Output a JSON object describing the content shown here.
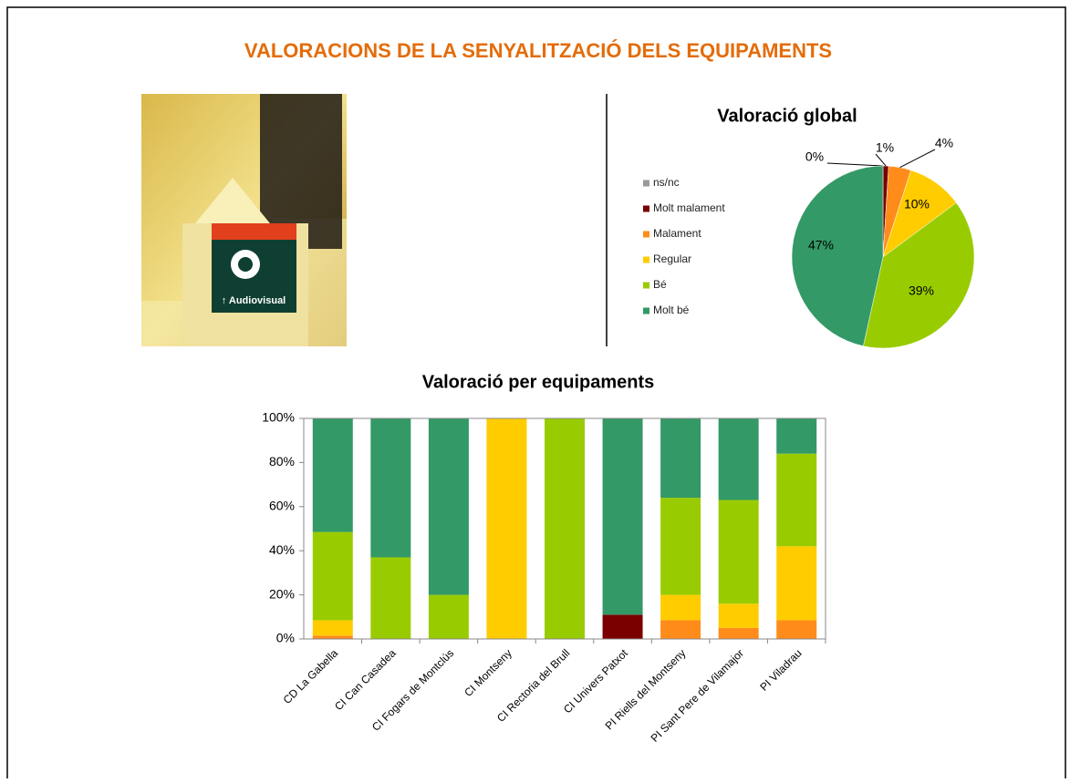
{
  "title": "VALORACIONS DE LA SENYALITZACIÓ DELS EQUIPAMENTS",
  "image": {
    "sign_text": "↑ Audiovisual"
  },
  "chart_data": [
    {
      "type": "pie",
      "title": "Valoració global",
      "categories": [
        "ns/nc",
        "Molt malament",
        "Malament",
        "Regular",
        "Bé",
        "Molt bé"
      ],
      "values": [
        0,
        1,
        4,
        10,
        39,
        47
      ],
      "value_labels": [
        "0%",
        "1%",
        "4%",
        "10%",
        "39%",
        "47%"
      ],
      "colors": [
        "#999999",
        "#7a0000",
        "#ff8c1a",
        "#ffcc00",
        "#99cc00",
        "#339966"
      ],
      "legend": "left"
    },
    {
      "type": "stacked_bar",
      "title": "Valoració per equipaments",
      "categories": [
        "CD La Gabella",
        "CI Can Casadea",
        "CI Fogars de Montclús",
        "CI Montseny",
        "CI Rectoria del Brull",
        "CI Univers Patxot",
        "PI Riells del Montseny",
        "PI Sant Pere de Vilamajor",
        "PI Viladrau"
      ],
      "series": [
        {
          "color": "#7a0000",
          "values": [
            0,
            0,
            0,
            0,
            0,
            11,
            0,
            0,
            0
          ]
        },
        {
          "color": "#ff8c1a",
          "values": [
            1.5,
            0,
            0,
            0,
            0,
            0,
            8.5,
            5,
            8.5
          ]
        },
        {
          "color": "#ffcc00",
          "values": [
            7,
            0,
            0,
            100,
            0,
            0,
            11.5,
            11,
            33.5
          ]
        },
        {
          "color": "#99cc00",
          "values": [
            40,
            37,
            20,
            0,
            100,
            0,
            44,
            47,
            42
          ]
        },
        {
          "color": "#339966",
          "values": [
            51.5,
            63,
            80,
            0,
            0,
            89,
            36,
            37,
            16
          ]
        }
      ],
      "ylim": [
        0,
        100
      ],
      "yticks": [
        {
          "value": 0,
          "label": "0%"
        },
        {
          "value": 20,
          "label": "20%"
        },
        {
          "value": 40,
          "label": "40%"
        },
        {
          "value": 60,
          "label": "60%"
        },
        {
          "value": 80,
          "label": "80%"
        },
        {
          "value": 100,
          "label": "100%"
        }
      ]
    }
  ]
}
